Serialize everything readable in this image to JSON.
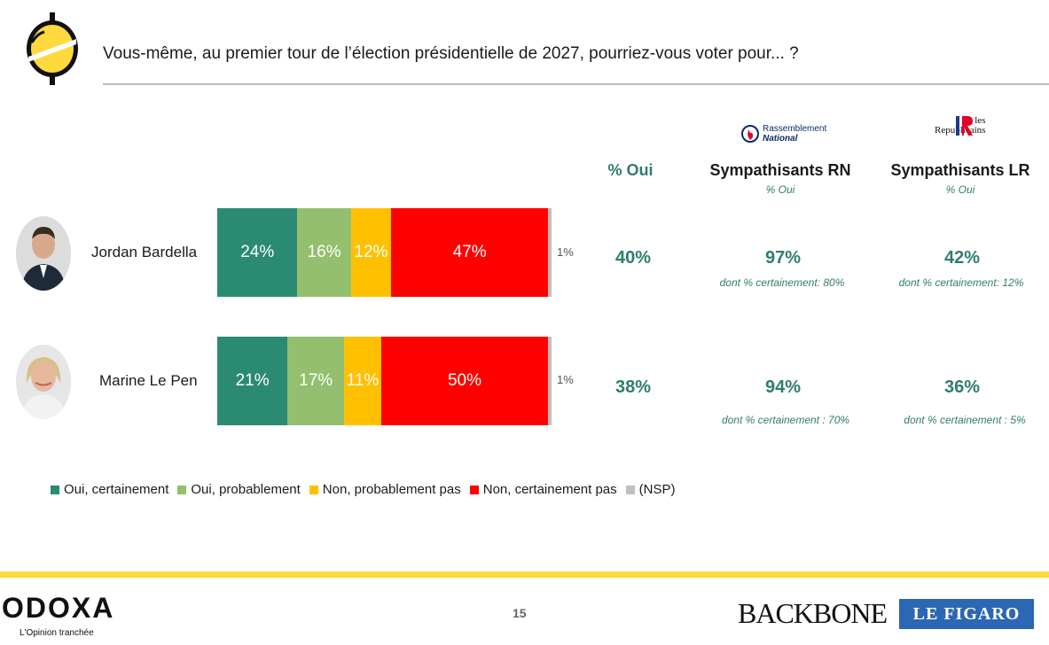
{
  "header": {
    "question": "Vous-même, au premier tour de l’élection présidentielle de 2027, pourriez-vous voter pour... ?"
  },
  "columns": {
    "pct_oui": "% Oui",
    "rn_title": "Sympathisants RN",
    "rn_sub": "% Oui",
    "rn_logo_line1": "Rassemblement",
    "rn_logo_line2": "National",
    "lr_title": "Sympathisants LR",
    "lr_sub": "% Oui",
    "lr_logo_line1": "les",
    "lr_logo_line2": "Republicains"
  },
  "chart_data": {
    "type": "bar",
    "orientation": "horizontal-stacked",
    "categories": [
      "Jordan Bardella",
      "Marine Le Pen"
    ],
    "series": [
      {
        "name": "Oui, certainement",
        "color": "#2a8a72",
        "values": [
          24,
          21
        ]
      },
      {
        "name": "Oui, probablement",
        "color": "#93bf6e",
        "values": [
          16,
          17
        ]
      },
      {
        "name": "Non, probablement pas",
        "color": "#ffc000",
        "values": [
          12,
          11
        ]
      },
      {
        "name": "Non, certainement pas",
        "color": "#ff0000",
        "values": [
          47,
          50
        ]
      },
      {
        "name": "(NSP)",
        "color": "#bfbfbf",
        "values": [
          1,
          1
        ]
      }
    ],
    "labels": [
      [
        "24%",
        "16%",
        "12%",
        "47%",
        "1%"
      ],
      [
        "21%",
        "17%",
        "11%",
        "50%",
        "1%"
      ]
    ]
  },
  "rows": [
    {
      "name": "Jordan Bardella",
      "pct_oui": "40%",
      "rn": "97%",
      "rn_note": "dont % certainement: 80%",
      "lr": "42%",
      "lr_note": "dont % certainement: 12%"
    },
    {
      "name": "Marine Le Pen",
      "pct_oui": "38%",
      "rn": "94%",
      "rn_note": "dont % certainement : 70%",
      "lr": "36%",
      "lr_note": "dont % certainement : 5%"
    }
  ],
  "legend": [
    "Oui, certainement",
    "Oui, probablement",
    "Non, probablement pas",
    "Non, certainement pas",
    "(NSP)"
  ],
  "footer": {
    "page": "15",
    "odoxa": "ODOXA",
    "odoxa_tagline": "L'Opinion tranchée",
    "backbone": "BACKBONE",
    "figaro": "LE FIGARO"
  }
}
